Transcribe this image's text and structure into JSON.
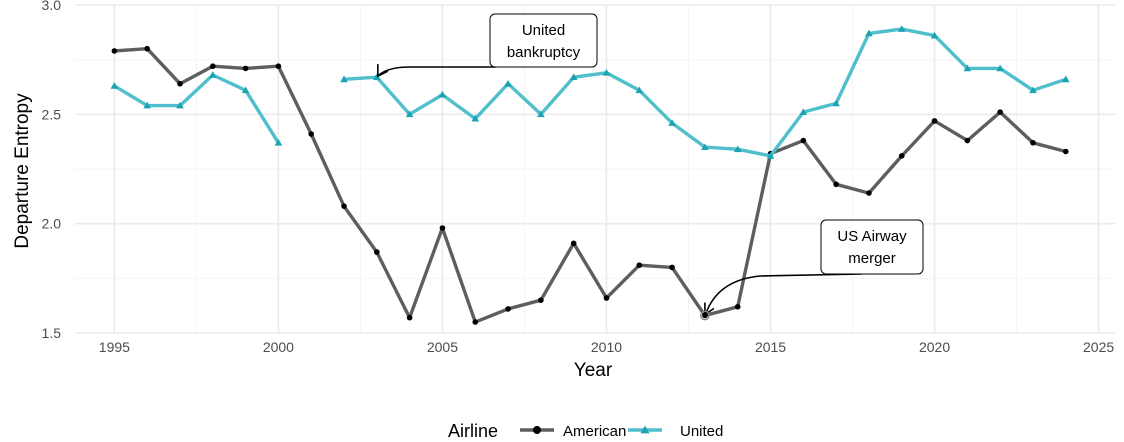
{
  "chart_data": {
    "type": "line",
    "title": "",
    "xlabel": "Year",
    "ylabel": "Departure Entropy",
    "xlim": [
      1993.8,
      2025.5
    ],
    "ylim": [
      1.5,
      3.0
    ],
    "x_ticks": [
      "1995",
      "2000",
      "2005",
      "2010",
      "2015",
      "2020",
      "2025"
    ],
    "y_ticks": [
      "1.5",
      "2.0",
      "2.5",
      "3.0"
    ],
    "grid": true,
    "legend_title": "Airline",
    "legend_position": "bottom",
    "series": [
      {
        "name": "American",
        "color": "#5e5e5e",
        "marker": "circle",
        "x": [
          1995,
          1996,
          1997,
          1998,
          1999,
          2000,
          2001,
          2002,
          2003,
          2004,
          2005,
          2006,
          2007,
          2008,
          2009,
          2010,
          2011,
          2012,
          2013,
          2014,
          2015,
          2016,
          2017,
          2018,
          2019,
          2020,
          2021,
          2022,
          2023,
          2024
        ],
        "y": [
          2.79,
          2.8,
          2.64,
          2.72,
          2.71,
          2.72,
          2.41,
          2.08,
          1.87,
          1.57,
          1.98,
          1.55,
          1.61,
          1.65,
          1.91,
          1.66,
          1.81,
          1.8,
          1.58,
          1.62,
          2.32,
          2.38,
          2.18,
          2.14,
          2.31,
          2.47,
          2.38,
          2.51,
          2.37,
          2.33
        ]
      },
      {
        "name": "United",
        "color": "#4fbfcb",
        "marker": "triangle",
        "x": [
          1995,
          1996,
          1997,
          1998,
          1999,
          2000,
          2001,
          2002,
          2003,
          2004,
          2005,
          2006,
          2007,
          2008,
          2009,
          2010,
          2011,
          2012,
          2013,
          2014,
          2015,
          2016,
          2017,
          2018,
          2019,
          2020,
          2021,
          2022,
          2023,
          2024
        ],
        "y": [
          2.63,
          2.54,
          2.54,
          2.68,
          2.61,
          2.37,
          null,
          2.66,
          2.67,
          2.5,
          2.59,
          2.48,
          2.64,
          2.5,
          2.67,
          2.69,
          2.61,
          2.46,
          2.35,
          2.34,
          2.31,
          2.51,
          2.55,
          2.87,
          2.89,
          2.86,
          2.71,
          2.71,
          2.61,
          2.66
        ]
      }
    ],
    "annotations": [
      {
        "text_lines": [
          "United",
          "bankruptcy"
        ],
        "x": 2003,
        "y": 2.67
      },
      {
        "text_lines": [
          "US Airway",
          "merger"
        ],
        "x": 2013,
        "y": 1.58
      }
    ]
  }
}
